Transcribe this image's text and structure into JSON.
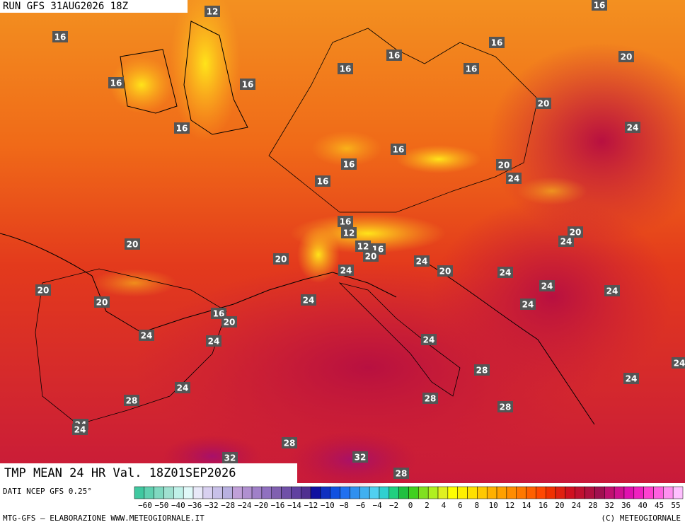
{
  "header": {
    "run": "RUN GFS 31AUG2026 18Z",
    "title": "TMP MEAN 24 HR Val. 18Z01SEP2026"
  },
  "map": {
    "contour_labels": [
      "12",
      "16",
      "16",
      "16",
      "16",
      "16",
      "16",
      "20",
      "16",
      "16",
      "20",
      "16",
      "24",
      "16",
      "16",
      "20",
      "24",
      "16",
      "16",
      "12",
      "20",
      "24",
      "20",
      "12",
      "16",
      "20",
      "20",
      "24",
      "24",
      "20",
      "24",
      "24",
      "20",
      "24",
      "20",
      "24",
      "24",
      "16",
      "20",
      "24",
      "24",
      "24",
      "24",
      "28",
      "24",
      "24",
      "28",
      "28",
      "28",
      "24",
      "24",
      "28",
      "32",
      "32",
      "28"
    ]
  },
  "colorbar": {
    "labels": [
      "−60",
      "−50",
      "−40",
      "−36",
      "−32",
      "−28",
      "−24",
      "−20",
      "−16",
      "−14",
      "−12",
      "−10",
      "−8",
      "−6",
      "−4",
      "−2",
      "0",
      "2",
      "4",
      "6",
      "8",
      "10",
      "12",
      "14",
      "16",
      "20",
      "24",
      "28",
      "32",
      "36",
      "40",
      "45",
      "55"
    ],
    "colors": [
      "#40c8a0",
      "#60d0b0",
      "#80d8c0",
      "#a0e0d0",
      "#c0f0e8",
      "#e0f8f8",
      "#e8e8f8",
      "#d8d0f0",
      "#c8c0e8",
      "#b8b0e0",
      "#c0a0d8",
      "#b090d0",
      "#a080c8",
      "#9070c0",
      "#8060b0",
      "#7050a8",
      "#6040a0",
      "#503090",
      "#1010a0",
      "#1030c0",
      "#1050e0",
      "#2070f0",
      "#3090f0",
      "#40b0f0",
      "#50d0f0",
      "#30d0d0",
      "#20d080",
      "#20c040",
      "#40d020",
      "#80e020",
      "#b0f020",
      "#e0f020",
      "#ffff00",
      "#fff000",
      "#ffe000",
      "#ffc800",
      "#ffb000",
      "#ffa000",
      "#ff8c00",
      "#ff7800",
      "#ff6000",
      "#ff4800",
      "#f03000",
      "#e02010",
      "#d01020",
      "#c01030",
      "#b01040",
      "#a01050",
      "#c01070",
      "#d01090",
      "#e010b0",
      "#f020c0",
      "#ff40d0",
      "#ff60e0",
      "#ff90f0",
      "#ffc0ff"
    ]
  },
  "footer": {
    "source": "DATI NCEP GFS 0.25°",
    "credits": "MTG-GFS — ELABORAZIONE WWW.METEOGIORNALE.IT",
    "copyright": "(C) METEOGIORNALE"
  }
}
